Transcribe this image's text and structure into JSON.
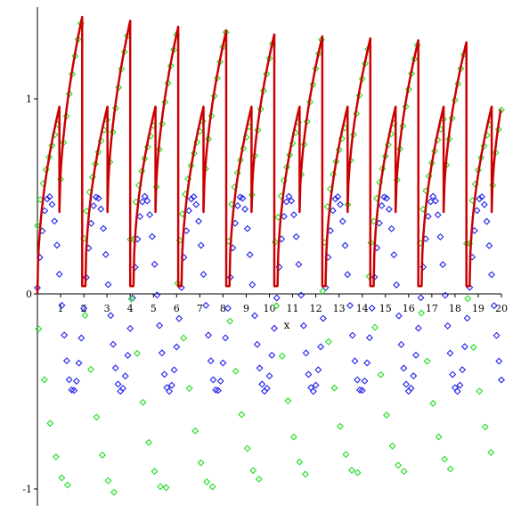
{
  "chart_data": {
    "type": "scatter",
    "title": "",
    "xlabel": "x",
    "ylabel": "",
    "xlim": [
      0,
      20
    ],
    "ylim": [
      -1.05,
      1.45
    ],
    "grid": false,
    "legend": "none",
    "x_ticks": [
      "1",
      "2",
      "3",
      "4",
      "5",
      "6",
      "7",
      "8",
      "9",
      "10",
      "11",
      "12",
      "13",
      "14",
      "15",
      "16",
      "17",
      "18",
      "19",
      "20"
    ],
    "y_ticks": [
      {
        "value": 1,
        "label": "1"
      },
      {
        "value": 0,
        "label": "0"
      },
      {
        "value": -1,
        "label": "-1"
      }
    ],
    "series": [
      {
        "style": "line",
        "color": "#cc0000",
        "period": 2.07,
        "points": [
          [
            0.0,
            0.0
          ],
          [
            0.15,
            0.2
          ],
          [
            0.3,
            0.38
          ],
          [
            0.5,
            0.56
          ],
          [
            0.7,
            0.7
          ],
          [
            0.9,
            0.8
          ],
          [
            1.05,
            0.85
          ],
          [
            1.07,
            0.43
          ],
          [
            1.2,
            0.55
          ],
          [
            1.4,
            0.75
          ],
          [
            1.6,
            0.9
          ],
          [
            1.8,
            0.98
          ],
          [
            1.95,
            1.0
          ],
          [
            1.97,
            0.45
          ],
          [
            2.1,
            0.72
          ],
          [
            2.3,
            0.98
          ],
          [
            2.5,
            1.12
          ],
          [
            2.7,
            1.22
          ],
          [
            2.9,
            1.28
          ],
          [
            3.02,
            1.3
          ],
          [
            3.04,
            0.02
          ],
          [
            3.2,
            0.3
          ],
          [
            3.4,
            0.55
          ],
          [
            3.6,
            0.72
          ],
          [
            3.8,
            0.85
          ],
          [
            3.9,
            0.92
          ]
        ],
        "peak_values": [
          1.42,
          1.4,
          1.37,
          1.35,
          1.33,
          1.32,
          1.31,
          1.3,
          1.29,
          1.29
        ]
      },
      {
        "style": "markers",
        "color": "#2222ee",
        "marker": "diamond",
        "amplitude": 0.5,
        "period": 2.07,
        "x_start": 0,
        "x_end": 20
      },
      {
        "style": "markers",
        "color": "#22dd22",
        "marker": "diamond",
        "period": 2.07,
        "x_start": 0,
        "x_end": 20,
        "min_values": [
          -0.98,
          -1.02,
          -1.0,
          -0.99,
          -0.95,
          -0.93,
          -0.92,
          -0.91,
          -0.9,
          -0.89
        ]
      }
    ]
  }
}
